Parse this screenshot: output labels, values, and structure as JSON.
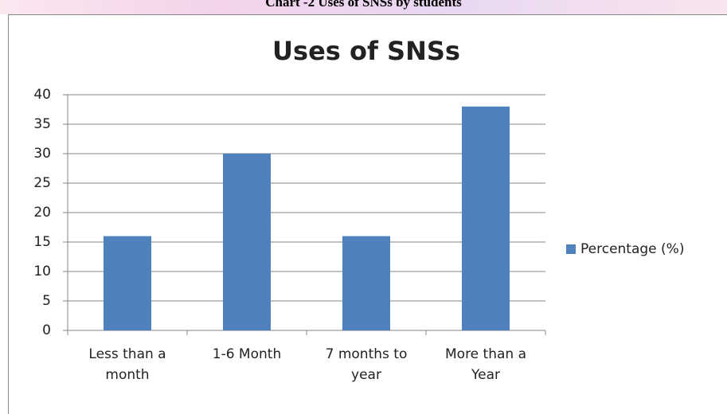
{
  "header": "Chart -2 Uses of SNSs by students",
  "chart_data": {
    "type": "bar",
    "title": "Uses of SNSs",
    "categories": [
      "Less than a month",
      "1-6 Month",
      "7 months to year",
      "More than a Year"
    ],
    "series": [
      {
        "name": "Percentage (%)",
        "color": "#4f81bd",
        "values": [
          16,
          30,
          16,
          38
        ]
      }
    ],
    "ylim": [
      0,
      40
    ],
    "yticks": [
      0,
      5,
      10,
      15,
      20,
      25,
      30,
      35,
      40
    ],
    "grid": true,
    "legend": "right"
  }
}
